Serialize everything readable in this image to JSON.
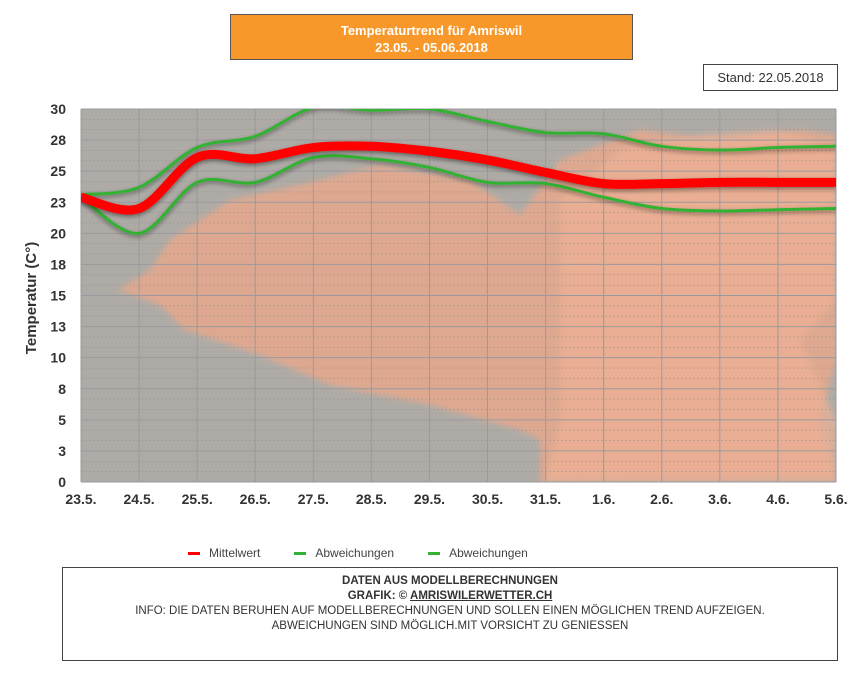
{
  "header": {
    "title_line1": "Temperaturtrend für Amriswil",
    "title_line2": "23.05. - 05.06.2018",
    "stand": "Stand: 22.05.2018"
  },
  "colors": {
    "title_bg": "#f8982a",
    "mean": "#ff0000",
    "deviation": "#33b233"
  },
  "chart_data": {
    "type": "line",
    "title": "Temperaturtrend für Amriswil",
    "subtitle": "23.05. - 05.06.2018",
    "xlabel": "",
    "ylabel": "Temperatur (C°)",
    "ylim": [
      0,
      30
    ],
    "yticks": [
      0,
      2.5,
      5,
      7.5,
      10,
      12.5,
      15,
      17.5,
      20,
      22.5,
      25,
      27.5,
      30
    ],
    "ytick_labels": [
      "0",
      "3",
      "5",
      "8",
      "10",
      "13",
      "15",
      "18",
      "20",
      "23",
      "25",
      "28",
      "30"
    ],
    "categories": [
      "23.5.",
      "24.5.",
      "25.5.",
      "26.5.",
      "27.5.",
      "28.5.",
      "29.5.",
      "30.5.",
      "31.5.",
      "1.6.",
      "2.6.",
      "3.6.",
      "4.6.",
      "5.6."
    ],
    "grid": true,
    "legend": "bottom",
    "series": [
      {
        "name": "Mittelwert",
        "color": "#ff0000",
        "values": [
          22.9,
          22.0,
          26.1,
          26.0,
          26.9,
          27.0,
          26.6,
          25.9,
          24.9,
          24.0,
          24.0,
          24.1,
          24.1,
          24.1
        ]
      },
      {
        "name": "Abweichungen",
        "color": "#33b233",
        "values": [
          23.1,
          23.7,
          26.9,
          27.8,
          30.1,
          29.9,
          30.0,
          29.0,
          28.1,
          28.0,
          27.0,
          26.7,
          26.9,
          27.0
        ]
      },
      {
        "name": "Abweichungen",
        "color": "#33b233",
        "values": [
          22.9,
          20.0,
          24.1,
          24.1,
          26.1,
          26.0,
          25.3,
          24.1,
          24.0,
          22.9,
          22.0,
          21.8,
          21.9,
          22.0
        ]
      }
    ]
  },
  "legend": [
    {
      "label": "Mittelwert",
      "color": "#ff0000"
    },
    {
      "label": "Abweichungen",
      "color": "#33b233"
    },
    {
      "label": "Abweichungen",
      "color": "#33b233"
    }
  ],
  "info": {
    "line1": "DATEN AUS MODELLBERECHNUNGEN",
    "line2_prefix": "GRAFIK: © ",
    "line2_link": "AMRISWILERWETTER.CH",
    "line3": "INFO: DIE DATEN BERUHEN AUF MODELLBERECHNUNGEN UND SOLLEN EINEN MÖGLICHEN TREND AUFZEIGEN.",
    "line4": "ABWEICHUNGEN SIND MÖGLICH.MIT VORSICHT ZU GENIESSEN"
  }
}
